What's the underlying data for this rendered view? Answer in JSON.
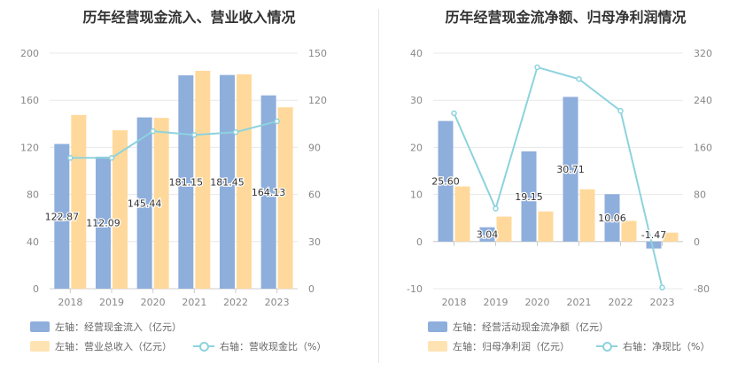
{
  "colors": {
    "bar_primary": "#8eaedc",
    "bar_secondary": "#ffd99b",
    "line": "#8dd3de",
    "text": "#333333",
    "axis_text": "#888888"
  },
  "chart_data": [
    {
      "type": "bar",
      "title": "历年经营现金流入、营业收入情况",
      "categories": [
        "2018",
        "2019",
        "2020",
        "2021",
        "2022",
        "2023"
      ],
      "ylim_left": [
        0,
        200
      ],
      "ylim_right": [
        0,
        150
      ],
      "left_ticks": [
        "0",
        "40",
        "80",
        "120",
        "160",
        "200"
      ],
      "right_ticks": [
        "0",
        "30",
        "60",
        "90",
        "120",
        "150"
      ],
      "grid": true,
      "series": [
        {
          "name": "左轴：经营现金流入（亿元）",
          "axis": "left",
          "type": "bar",
          "values": [
            122.87,
            112.09,
            145.44,
            181.15,
            181.45,
            164.13
          ],
          "labels": [
            "122.87",
            "112.09",
            "145.44",
            "181.15",
            "181.45",
            "164.13"
          ]
        },
        {
          "name": "左轴：营业总收入（亿元）",
          "axis": "left",
          "type": "bar",
          "values": [
            147.5,
            134.5,
            145.0,
            185.0,
            182.0,
            154.0
          ]
        },
        {
          "name": "右轴：营收现金比（%）",
          "axis": "right",
          "type": "line",
          "values": [
            83.3,
            83.3,
            100.3,
            97.9,
            99.7,
            106.6
          ]
        }
      ]
    },
    {
      "type": "bar",
      "title": "历年经营现金流净额、归母净利润情况",
      "categories": [
        "2018",
        "2019",
        "2020",
        "2021",
        "2022",
        "2023"
      ],
      "ylim_left": [
        -10,
        40
      ],
      "ylim_right": [
        -80,
        320
      ],
      "left_ticks": [
        "-10",
        "0",
        "10",
        "20",
        "30",
        "40"
      ],
      "right_ticks": [
        "-80",
        "0",
        "80",
        "160",
        "240",
        "320"
      ],
      "grid": true,
      "series": [
        {
          "name": "左轴：经营活动现金流净额（亿元）",
          "axis": "left",
          "type": "bar",
          "values": [
            25.6,
            3.04,
            19.15,
            30.71,
            10.06,
            -1.47
          ],
          "labels": [
            "25.60",
            "3.04",
            "19.15",
            "30.71",
            "10.06",
            "-1.47"
          ]
        },
        {
          "name": "左轴：归母净利润（亿元）",
          "axis": "left",
          "type": "bar",
          "values": [
            11.7,
            5.3,
            6.4,
            11.1,
            4.4,
            1.9
          ]
        },
        {
          "name": "右轴：净现比（%）",
          "axis": "right",
          "type": "line",
          "values": [
            218,
            56,
            296,
            276,
            222,
            -78
          ]
        }
      ]
    }
  ]
}
